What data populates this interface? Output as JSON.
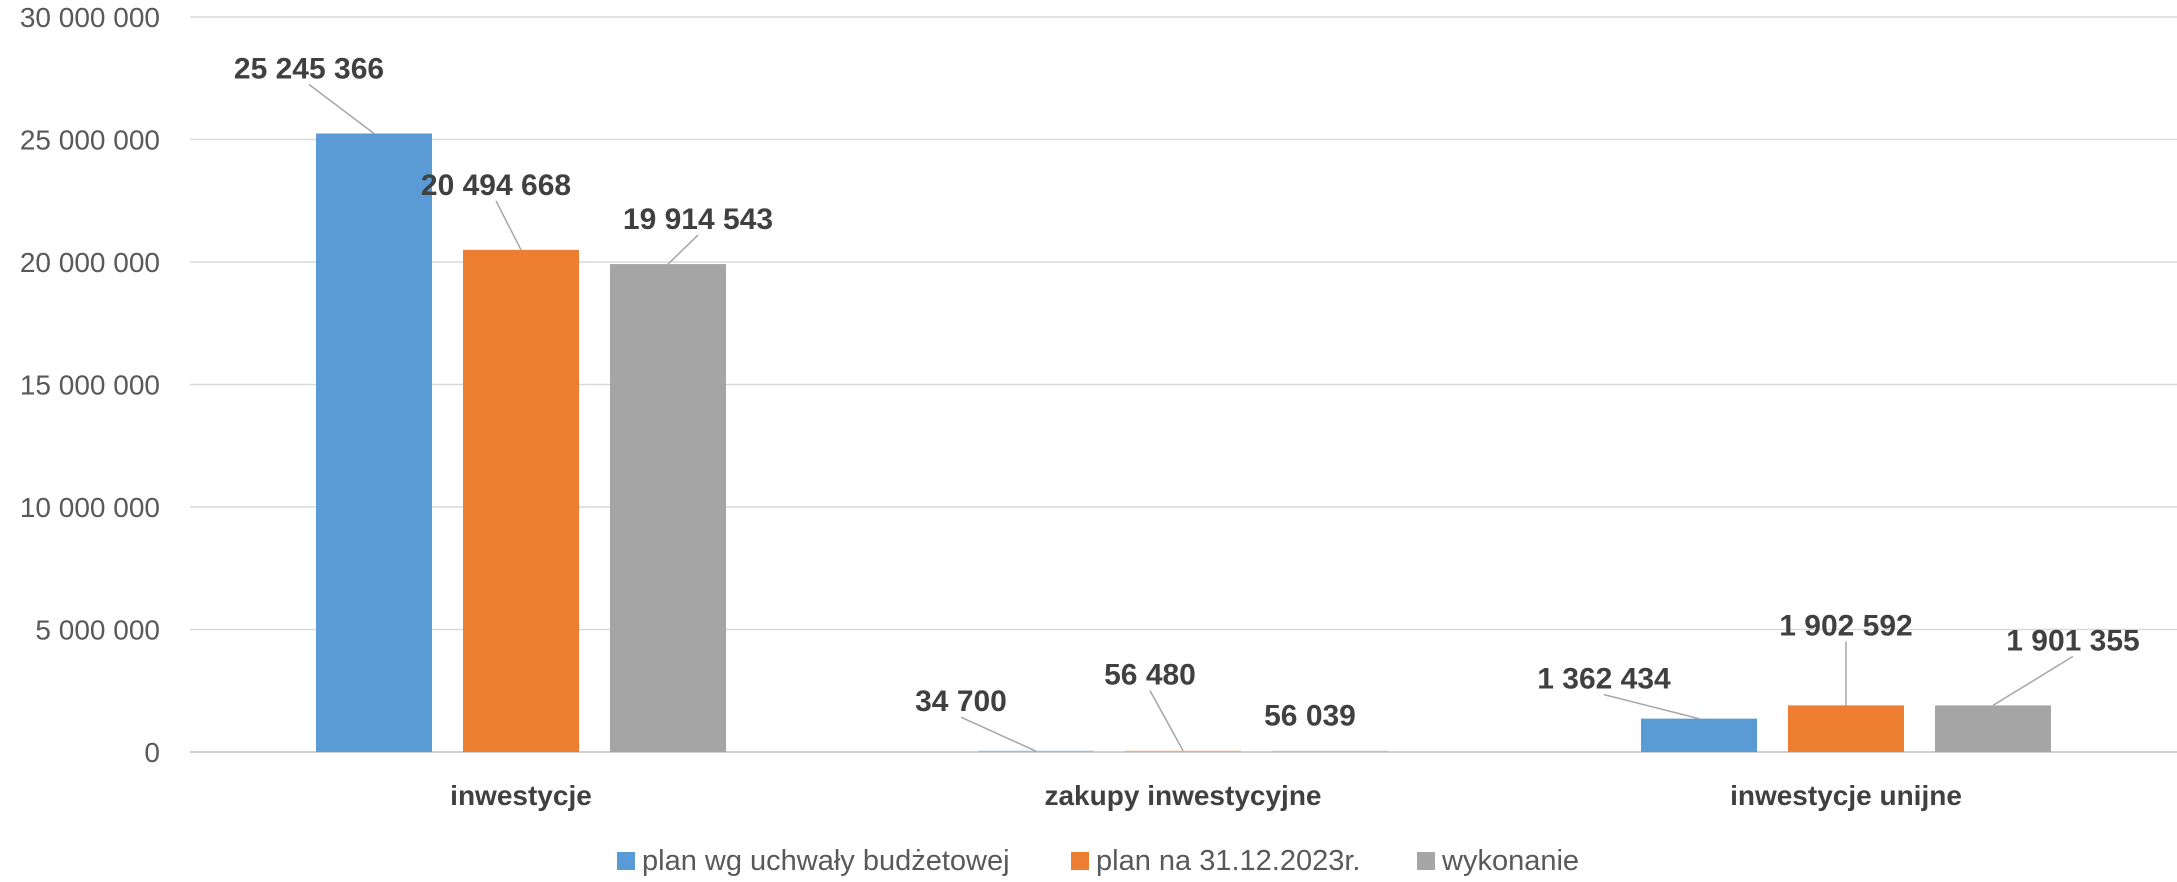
{
  "chart_data": {
    "type": "bar",
    "categories": [
      "inwestycje",
      "zakupy inwestycyjne",
      "inwestycje unijne"
    ],
    "series": [
      {
        "name": "plan wg uchwały budżetowej",
        "color": "#5b9bd5",
        "values": [
          25245366,
          34700,
          1362434
        ],
        "labels": [
          "25 245 366",
          "34 700",
          "1 362 434"
        ]
      },
      {
        "name": "plan na 31.12.2023r.",
        "color": "#ed7d31",
        "values": [
          20494668,
          56480,
          1902592
        ],
        "labels": [
          "20 494 668",
          "56 480",
          "1 902 592"
        ]
      },
      {
        "name": "wykonanie",
        "color": "#a5a5a5",
        "values": [
          19914543,
          56039,
          1901355
        ],
        "labels": [
          "19 914 543",
          "56 039",
          "1 901 355"
        ]
      }
    ],
    "ylim": [
      0,
      30000000
    ],
    "yticks": [
      {
        "value": 0,
        "label": "0"
      },
      {
        "value": 5000000,
        "label": "5 000 000"
      },
      {
        "value": 10000000,
        "label": "10 000 000"
      },
      {
        "value": 15000000,
        "label": "15 000 000"
      },
      {
        "value": 20000000,
        "label": "20 000 000"
      },
      {
        "value": 25000000,
        "label": "25 000 000"
      },
      {
        "value": 30000000,
        "label": "30 000 000"
      }
    ],
    "grid": true,
    "legend_position": "bottom"
  }
}
